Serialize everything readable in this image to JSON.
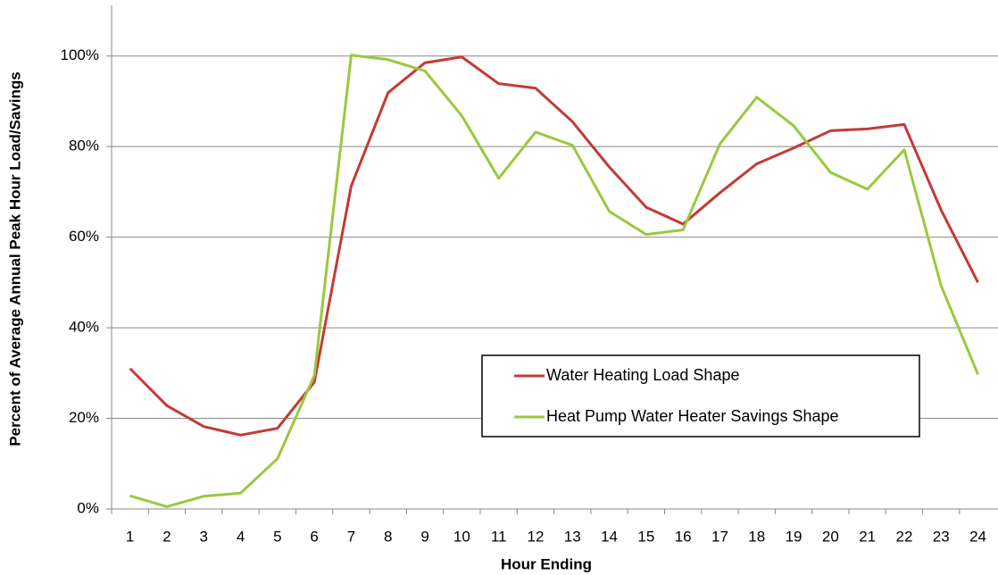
{
  "chart_data": {
    "type": "line",
    "x_label": "Hour Ending",
    "y_label": "Percent of Average Annual Peak Hour Load/Savings",
    "categories": [
      "1",
      "2",
      "3",
      "4",
      "5",
      "6",
      "7",
      "8",
      "9",
      "10",
      "11",
      "12",
      "13",
      "14",
      "15",
      "16",
      "17",
      "18",
      "19",
      "20",
      "21",
      "22",
      "23",
      "24"
    ],
    "series": [
      {
        "name": "Water Heating Load Shape",
        "color": "#c43a36",
        "values": [
          31,
          22.8,
          18.2,
          16.3,
          17.8,
          28,
          71.3,
          91.9,
          98.5,
          99.8,
          93.9,
          92.9,
          85.5,
          75.5,
          66.6,
          62.9,
          69.8,
          76.2,
          79.7,
          83.5,
          83.9,
          84.9,
          66,
          50
        ]
      },
      {
        "name": "Heat Pump Water Heater Savings Shape",
        "color": "#9bc83f",
        "values": [
          2.9,
          0.5,
          2.8,
          3.5,
          11.1,
          29.5,
          100.2,
          99.2,
          96.7,
          86.8,
          73,
          83.2,
          80.3,
          65.7,
          60.6,
          61.6,
          80.6,
          90.9,
          84.6,
          74.3,
          70.6,
          79.3,
          49.3,
          29.7
        ]
      }
    ],
    "ylim": [
      0,
      110
    ],
    "yticks": [
      {
        "value": 0,
        "label": "0%"
      },
      {
        "value": 20,
        "label": "20%"
      },
      {
        "value": 40,
        "label": "40%"
      },
      {
        "value": 60,
        "label": "60%"
      },
      {
        "value": 80,
        "label": "80%"
      },
      {
        "value": 100,
        "label": "100%"
      }
    ],
    "grid": true,
    "legend": "center-right"
  }
}
